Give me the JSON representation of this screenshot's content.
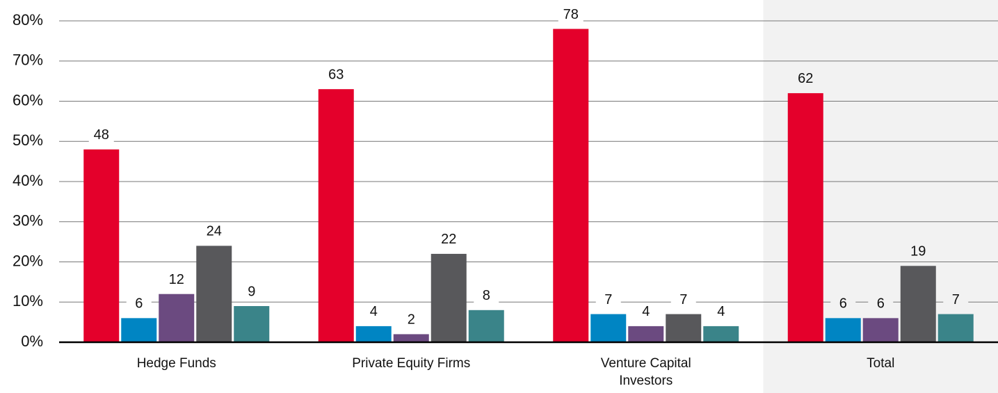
{
  "chart_data": {
    "type": "bar",
    "categories": [
      "Hedge Funds",
      "Private Equity Firms",
      "Venture Capital Investors",
      "Total"
    ],
    "series": [
      {
        "color": "#e4002b",
        "values": [
          48,
          63,
          78,
          62
        ]
      },
      {
        "color": "#0085c3",
        "values": [
          6,
          4,
          7,
          6
        ]
      },
      {
        "color": "#6b4a80",
        "values": [
          12,
          2,
          4,
          6
        ]
      },
      {
        "color": "#58585b",
        "values": [
          24,
          22,
          7,
          19
        ]
      },
      {
        "color": "#3a8489",
        "values": [
          9,
          8,
          4,
          7
        ]
      }
    ],
    "ylim": [
      0,
      80
    ],
    "yticks": [
      {
        "value": 0,
        "label": "0%"
      },
      {
        "value": 10,
        "label": "10%"
      },
      {
        "value": 20,
        "label": "20%"
      },
      {
        "value": 30,
        "label": "30%"
      },
      {
        "value": 40,
        "label": "40%"
      },
      {
        "value": 50,
        "label": "50%"
      },
      {
        "value": 60,
        "label": "60%"
      },
      {
        "value": 70,
        "label": "70%"
      },
      {
        "value": 80,
        "label": "80%"
      }
    ],
    "grid": true
  }
}
